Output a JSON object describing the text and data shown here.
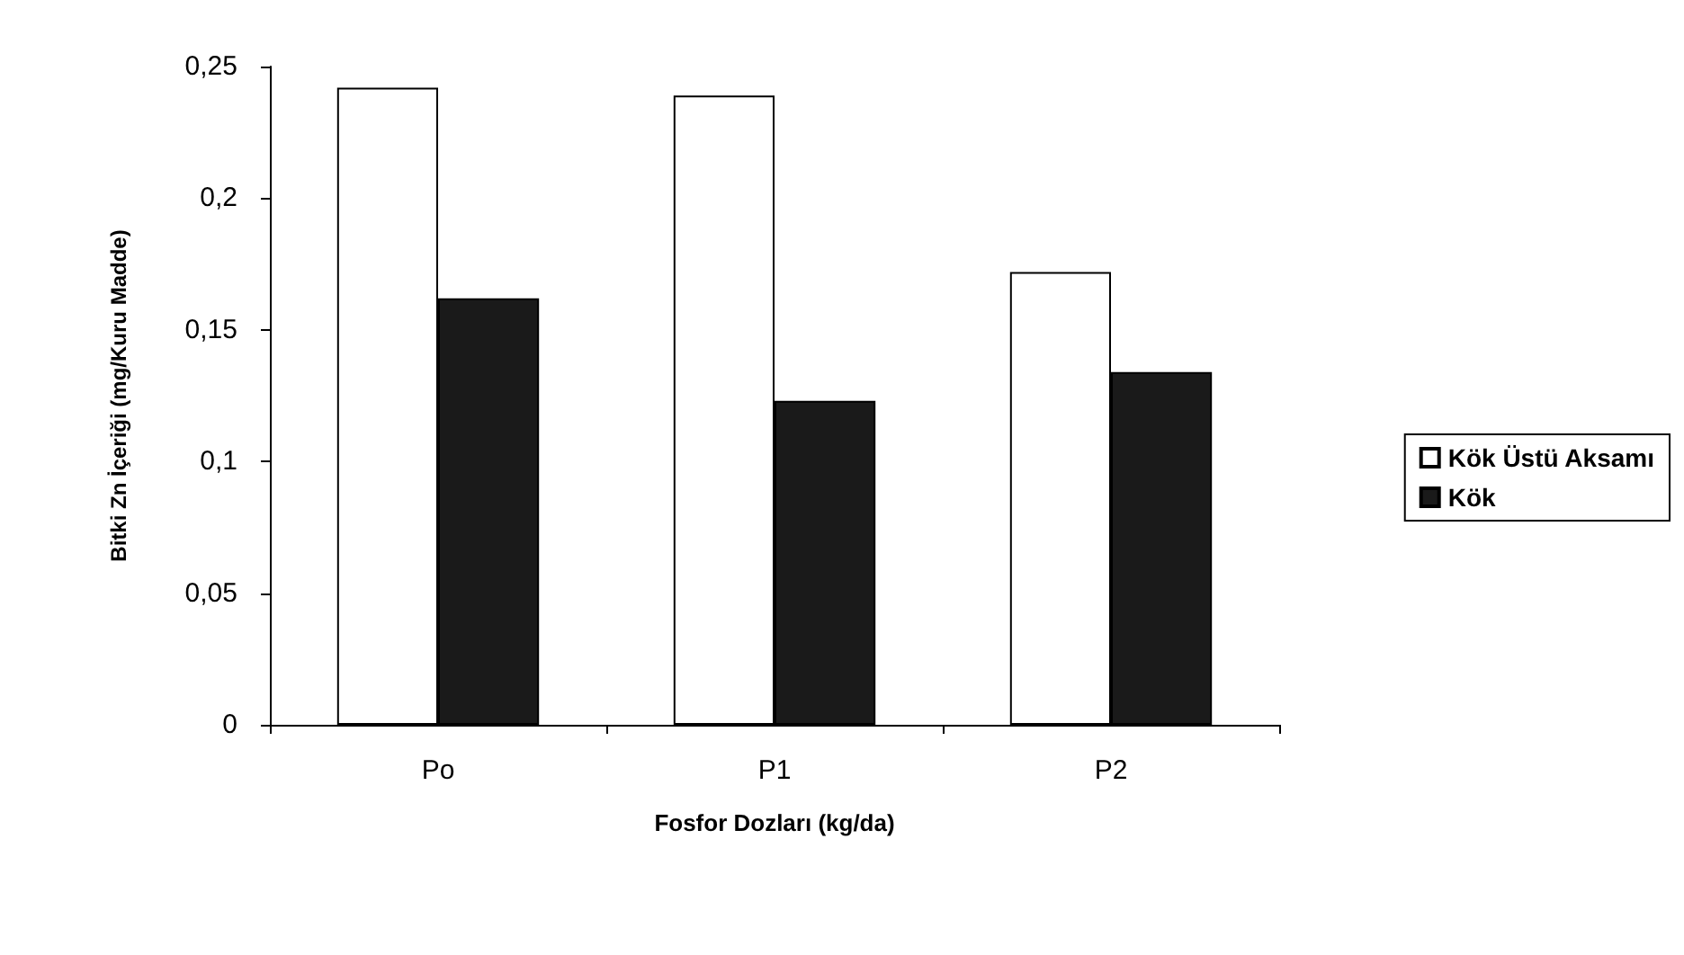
{
  "chart_data": {
    "type": "bar",
    "xlabel": "Fosfor Dozları (kg/da)",
    "ylabel": "Bitki Zn İçeriği (mg/Kuru Madde)",
    "categories": [
      "Po",
      "P1",
      "P2"
    ],
    "series": [
      {
        "name": "Kök Üstü Aksamı",
        "color": "#ffffff",
        "values": [
          0.242,
          0.239,
          0.172
        ]
      },
      {
        "name": "Kök",
        "color": "#1a1a1a",
        "values": [
          0.162,
          0.123,
          0.134
        ]
      }
    ],
    "ylim": [
      0,
      0.25
    ],
    "yticks": [
      0,
      {
        "value": 0.05,
        "label": "0,05"
      },
      {
        "value": 0.1,
        "label": "0,1"
      },
      {
        "value": 0.15,
        "label": "0,15"
      },
      {
        "value": 0.2,
        "label": "0,2"
      },
      {
        "value": 0.25,
        "label": "0,25"
      }
    ],
    "grid": false,
    "legend": "right"
  }
}
